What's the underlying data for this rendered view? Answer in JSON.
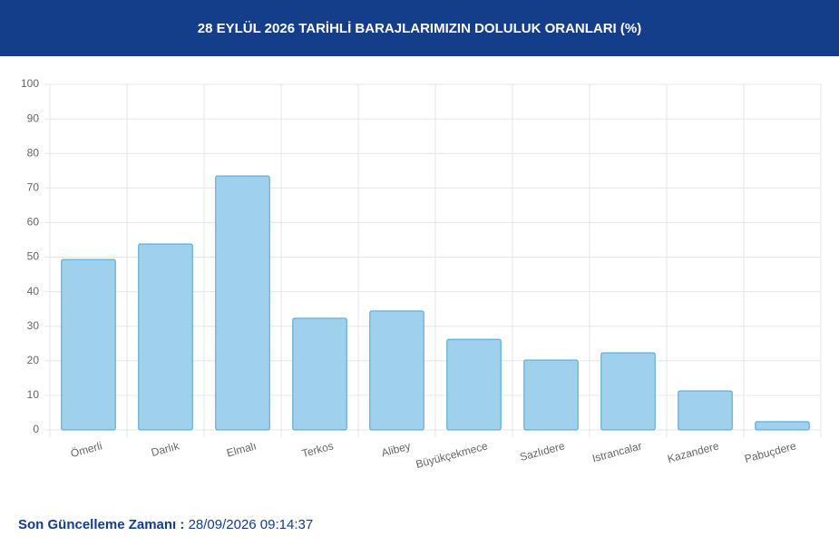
{
  "header": {
    "title": "28 EYLÜL 2026 TARİHLİ BARAJLARIMIZIN DOLULUK ORANLARI (%)"
  },
  "chart_data": {
    "type": "bar",
    "categories": [
      "Ömerli",
      "Darlık",
      "Elmalı",
      "Terkos",
      "Alibey",
      "Büyükçekmece",
      "Sazlıdere",
      "Istrancalar",
      "Kazandere",
      "Pabuçdere"
    ],
    "values": [
      49.3,
      53.8,
      73.5,
      32.3,
      34.4,
      26.2,
      20.2,
      22.3,
      11.3,
      2.4
    ],
    "color": "#9fd0ec",
    "border_color": "#4aa3d4",
    "ylim": [
      0,
      100
    ],
    "yticks": [
      0,
      10,
      20,
      30,
      40,
      50,
      60,
      70,
      80,
      90,
      100
    ],
    "grid": true
  },
  "footer": {
    "label": "Son Güncelleme Zamanı :",
    "value": "28/09/2026 09:14:37"
  }
}
